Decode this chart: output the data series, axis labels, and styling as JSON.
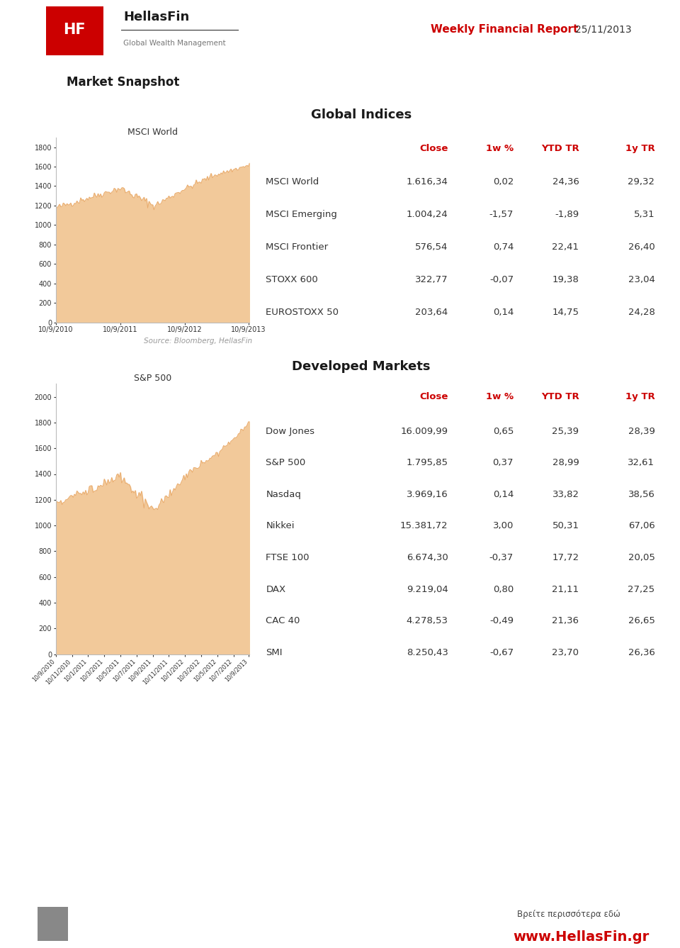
{
  "title": "Market Snapshot",
  "report_title": "Weekly Financial Report",
  "report_date": "25/11/2013",
  "website": "www.HellasFin.gr",
  "footer_text": "Βρείτε περισσότερα εδώ",
  "source_text": "Source: Bloomberg, HellasFin",
  "global_indices_title": "Global Indices",
  "developed_markets_title": "Developed Markets",
  "table_headers": [
    "Close",
    "1w %",
    "YTD TR",
    "1y TR"
  ],
  "global_rows": [
    [
      "MSCI World",
      "1.616,34",
      "0,02",
      "24,36",
      "29,32"
    ],
    [
      "MSCI Emerging",
      "1.004,24",
      "-1,57",
      "-1,89",
      "5,31"
    ],
    [
      "MSCI Frontier",
      "576,54",
      "0,74",
      "22,41",
      "26,40"
    ],
    [
      "STOXX 600",
      "322,77",
      "-0,07",
      "19,38",
      "23,04"
    ],
    [
      "EUROSTOXX 50",
      "203,64",
      "0,14",
      "14,75",
      "24,28"
    ]
  ],
  "developed_rows": [
    [
      "Dow Jones",
      "16.009,99",
      "0,65",
      "25,39",
      "28,39"
    ],
    [
      "S&P 500",
      "1.795,85",
      "0,37",
      "28,99",
      "32,61"
    ],
    [
      "Nasdaq",
      "3.969,16",
      "0,14",
      "33,82",
      "38,56"
    ],
    [
      "Nikkei",
      "15.381,72",
      "3,00",
      "50,31",
      "67,06"
    ],
    [
      "FTSE 100",
      "6.674,30",
      "-0,37",
      "17,72",
      "20,05"
    ],
    [
      "DAX",
      "9.219,04",
      "0,80",
      "21,11",
      "27,25"
    ],
    [
      "CAC 40",
      "4.278,53",
      "-0,49",
      "21,36",
      "26,65"
    ],
    [
      "SMI",
      "8.250,43",
      "-0,67",
      "23,70",
      "26,36"
    ]
  ],
  "msci_chart_title": "MSCI World",
  "sp500_chart_title": "S&P 500",
  "msci_x_ticks": [
    "10/9/2010",
    "10/9/2011",
    "10/9/2012",
    "10/9/2013"
  ],
  "msci_yticks": [
    0,
    200,
    400,
    600,
    800,
    1000,
    1200,
    1400,
    1600,
    1800
  ],
  "sp500_yticks": [
    0,
    200,
    400,
    600,
    800,
    1000,
    1200,
    1400,
    1600,
    1800,
    2000
  ],
  "sp500_x_ticks": [
    "10/9/2010",
    "10/11/2010",
    "10/1/2011",
    "10/3/2011",
    "10/5/2011",
    "10/7/2011",
    "10/9/2011",
    "10/11/2011",
    "10/1/2012",
    "10/3/2012",
    "10/5/2012",
    "10/7/2012",
    "10/9/2013"
  ],
  "chart_line_color": "#F2C99A",
  "chart_fill_color": "#F2C99A",
  "red_color": "#CC0000",
  "dark_color": "#333333",
  "header_red": "#CC0000",
  "bg_color": "#FFFFFF",
  "section_bg": "#EBEBEB",
  "left_bar_color": "#CC0000",
  "logo_bg": "#CC0000",
  "footer_bg": "#AAAAAA"
}
